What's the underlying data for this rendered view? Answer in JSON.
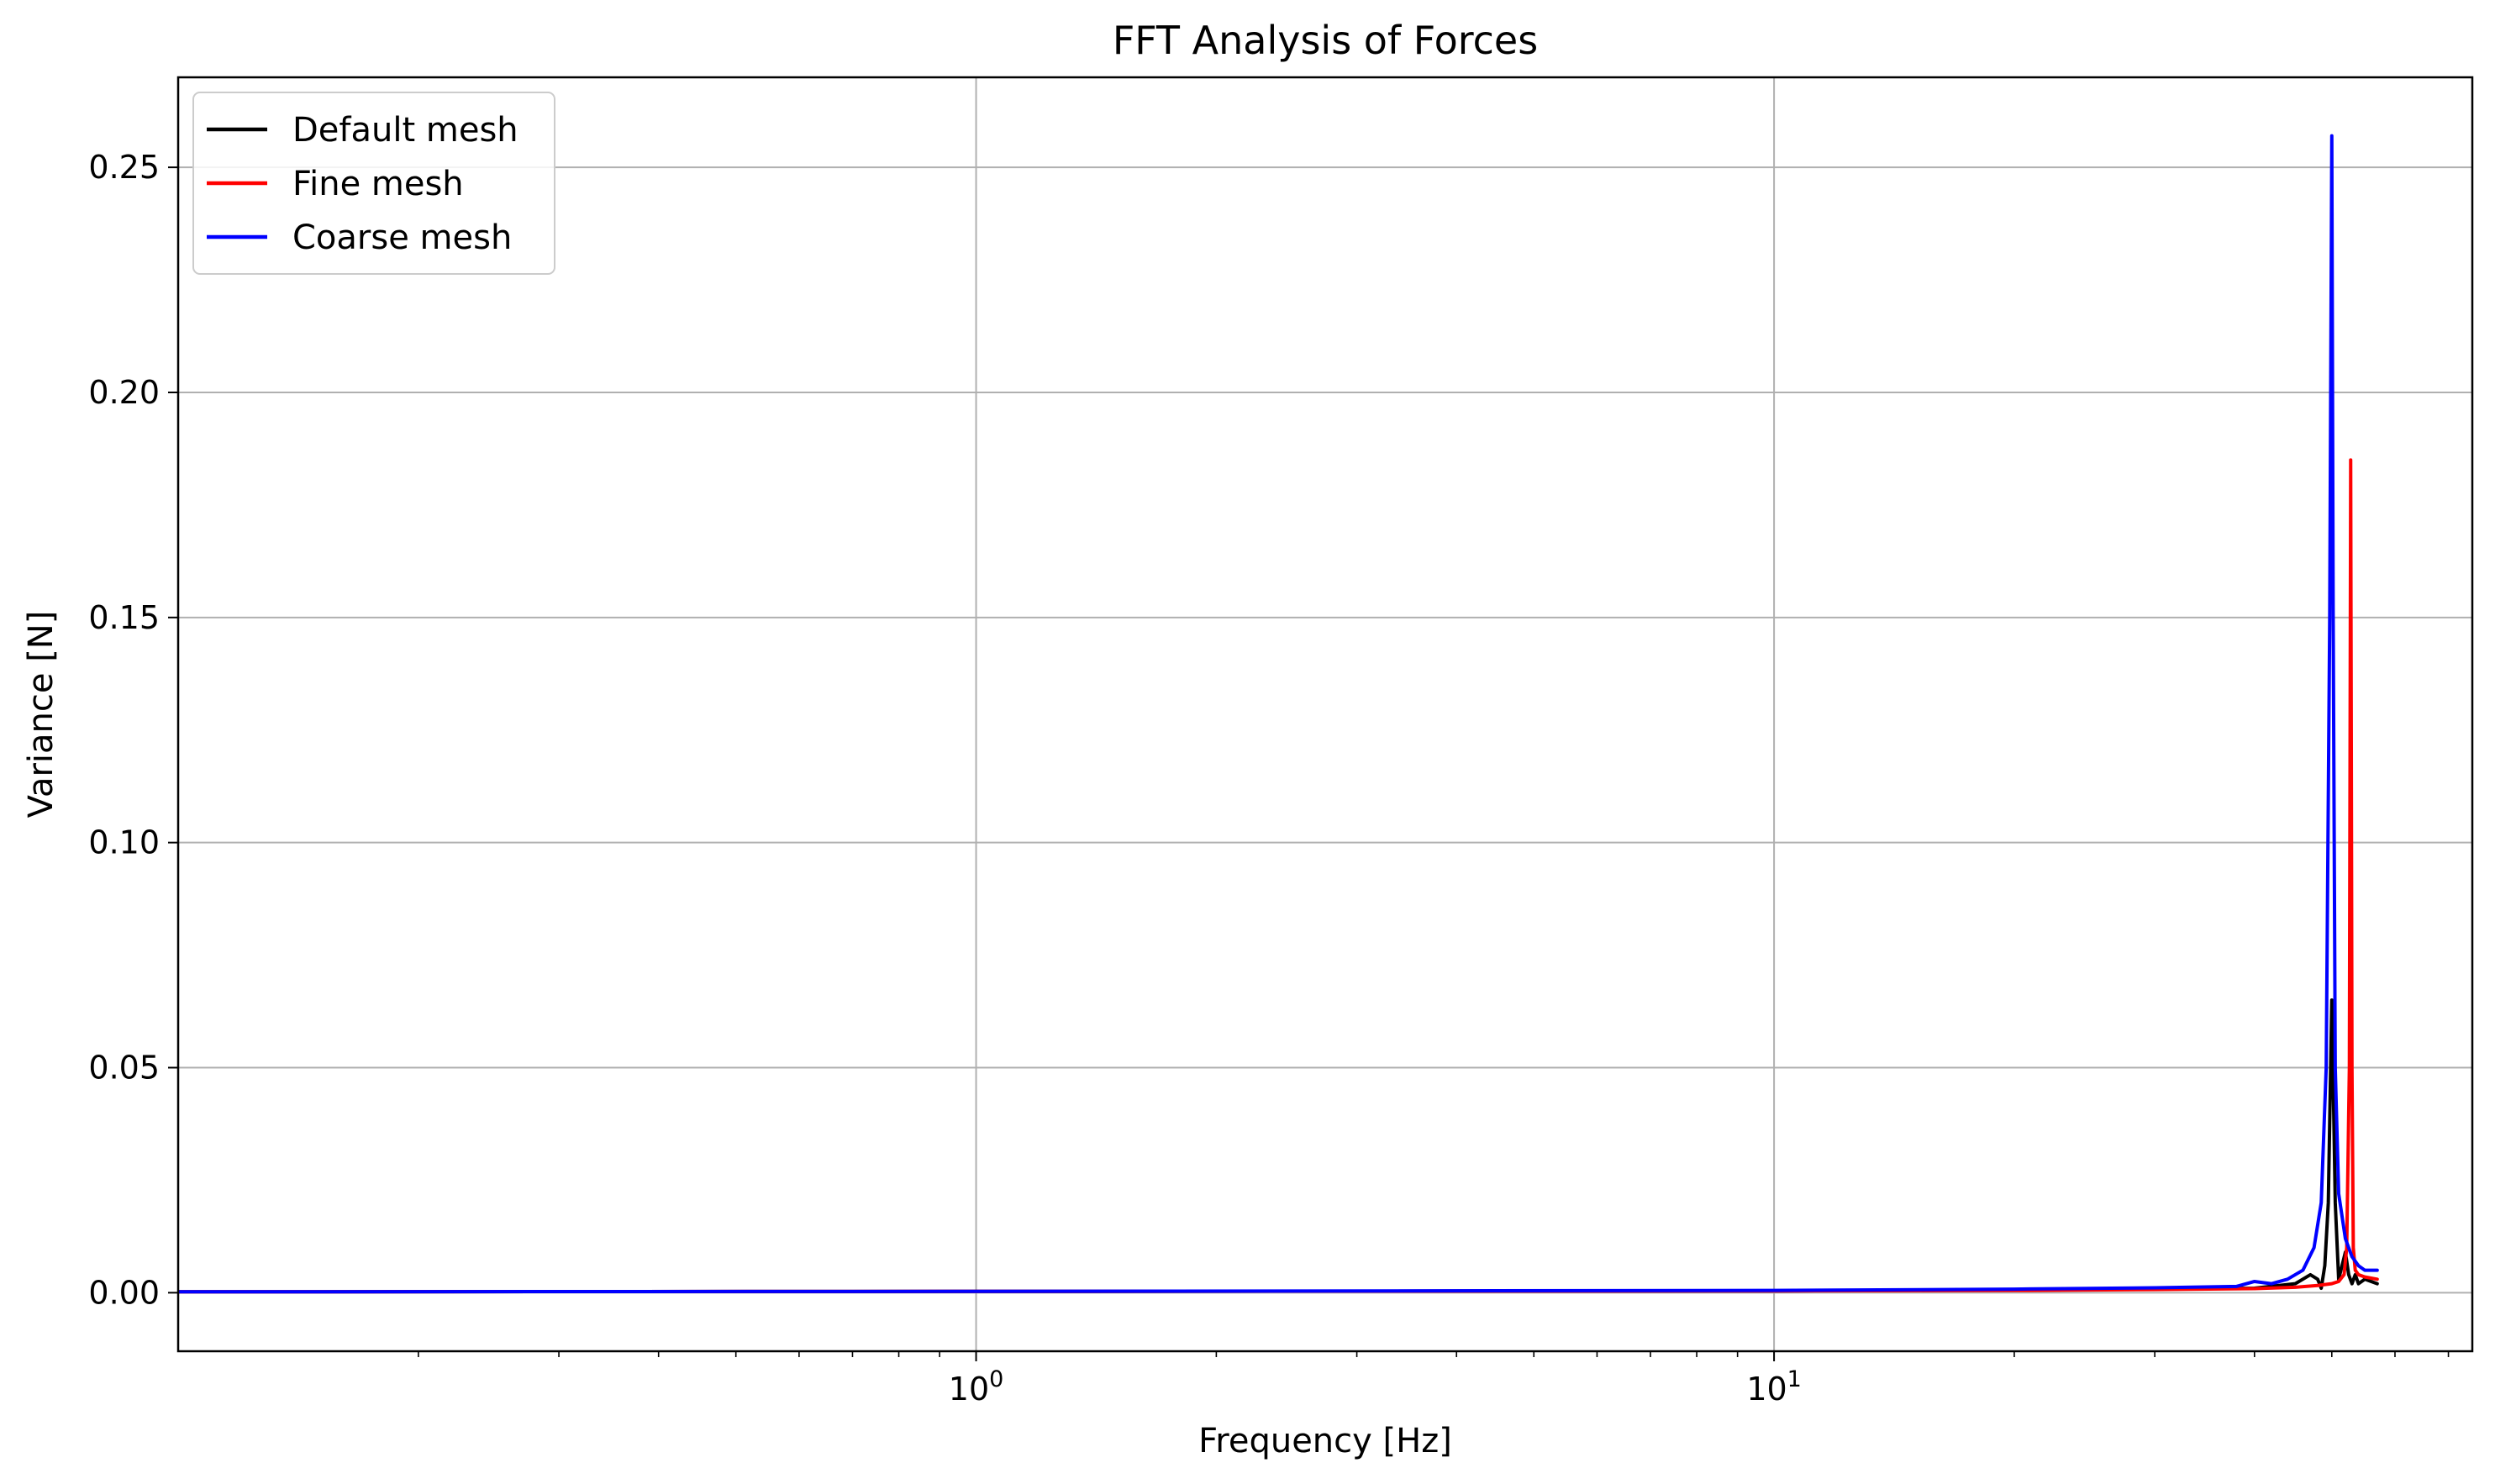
{
  "chart_data": {
    "type": "line",
    "title": "FFT Analysis of Forces",
    "xlabel": "Frequency [Hz]",
    "ylabel": "Variance [N]",
    "x_scale": "log",
    "xlim": [
      0.1,
      75
    ],
    "ylim": [
      -0.013,
      0.27
    ],
    "grid": true,
    "legend_position": "top-left",
    "x_major_ticks": [
      {
        "value": 1,
        "base": "10",
        "exp": "0"
      },
      {
        "value": 10,
        "base": "10",
        "exp": "1"
      }
    ],
    "y_ticks": [
      {
        "value": 0.0,
        "label": "0.00"
      },
      {
        "value": 0.05,
        "label": "0.05"
      },
      {
        "value": 0.1,
        "label": "0.10"
      },
      {
        "value": 0.15,
        "label": "0.15"
      },
      {
        "value": 0.2,
        "label": "0.20"
      },
      {
        "value": 0.25,
        "label": "0.25"
      }
    ],
    "series": [
      {
        "name": "Default mesh",
        "color": "#000000",
        "x": [
          0.1,
          1,
          10,
          20,
          30,
          35,
          40,
          45,
          47,
          48,
          48.5,
          49,
          49.5,
          50,
          50.5,
          51,
          51.5,
          52,
          52.5,
          53,
          53.5,
          54,
          55,
          57
        ],
        "y": [
          0.0002,
          0.0003,
          0.0004,
          0.0006,
          0.0008,
          0.0009,
          0.001,
          0.002,
          0.004,
          0.003,
          0.001,
          0.006,
          0.02,
          0.065,
          0.02,
          0.003,
          0.006,
          0.009,
          0.004,
          0.002,
          0.004,
          0.002,
          0.003,
          0.002
        ]
      },
      {
        "name": "Fine mesh",
        "color": "#ff0000",
        "x": [
          0.1,
          1,
          10,
          20,
          30,
          40,
          45,
          48,
          50,
          51,
          51.8,
          52.2,
          52.6,
          52.8,
          53,
          53.2,
          53.5,
          54,
          55,
          57
        ],
        "y": [
          0.0002,
          0.0003,
          0.0004,
          0.0005,
          0.0007,
          0.0009,
          0.0012,
          0.0016,
          0.002,
          0.0025,
          0.004,
          0.01,
          0.05,
          0.185,
          0.05,
          0.01,
          0.005,
          0.004,
          0.0035,
          0.003
        ]
      },
      {
        "name": "Coarse mesh",
        "color": "#0000ff",
        "x": [
          0.1,
          1,
          10,
          20,
          30,
          38,
          40,
          42,
          44,
          46,
          47.5,
          48.5,
          49.2,
          49.7,
          50,
          50.2,
          50.5,
          51,
          52,
          53,
          54,
          55,
          57
        ],
        "y": [
          0.0002,
          0.0003,
          0.0005,
          0.0008,
          0.0011,
          0.0014,
          0.0025,
          0.002,
          0.003,
          0.005,
          0.01,
          0.02,
          0.05,
          0.15,
          0.257,
          0.15,
          0.05,
          0.022,
          0.012,
          0.008,
          0.006,
          0.005,
          0.005
        ]
      }
    ]
  }
}
